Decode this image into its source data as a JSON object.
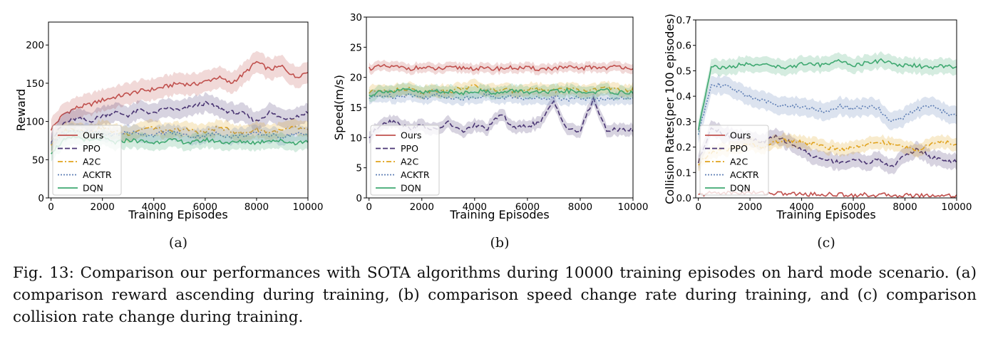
{
  "caption": "Fig. 13: Comparison our performances with SOTA algorithms during 10000 training episodes on hard mode scenario. (a) comparison reward ascending during training, (b) comparison speed change rate during training, and (c) comparison collision rate change during training.",
  "colors": {
    "Ours": "#c0504d",
    "PPO": "#4a3573",
    "A2C": "#e0a21c",
    "ACKTR": "#5f7fb5",
    "DQN": "#3ea870"
  },
  "chart_data": [
    {
      "type": "line",
      "panel_label": "(a)",
      "xlabel": "Training Episodes",
      "ylabel": "Reward",
      "xlim": [
        -100,
        10000
      ],
      "ylim": [
        0,
        230
      ],
      "xticks": [
        0,
        2000,
        4000,
        6000,
        8000,
        10000
      ],
      "xtick_labels": [
        "0",
        "2000",
        "4000",
        "6000",
        "8000",
        "10000"
      ],
      "yticks": [
        0,
        50,
        100,
        150,
        200
      ],
      "ytick_labels": [
        "0",
        "50",
        "100",
        "150",
        "200"
      ],
      "legend": "lower-left",
      "x": [
        0,
        500,
        1000,
        1500,
        2000,
        2500,
        3000,
        3500,
        4000,
        4500,
        5000,
        5500,
        6000,
        6500,
        7000,
        7500,
        8000,
        8500,
        9000,
        9500,
        10000
      ],
      "series": [
        {
          "name": "Ours",
          "dash": "solid",
          "band": 14,
          "values": [
            90,
            110,
            118,
            122,
            128,
            132,
            136,
            140,
            142,
            146,
            150,
            148,
            152,
            158,
            150,
            162,
            178,
            168,
            172,
            158,
            165
          ]
        },
        {
          "name": "PPO",
          "dash": "dashed",
          "band": 12,
          "values": [
            75,
            98,
            104,
            100,
            108,
            112,
            108,
            115,
            110,
            118,
            114,
            120,
            124,
            118,
            112,
            110,
            100,
            112,
            104,
            106,
            112
          ]
        },
        {
          "name": "A2C",
          "dash": "dashdot",
          "band": 10,
          "values": [
            70,
            88,
            90,
            86,
            92,
            86,
            84,
            90,
            92,
            86,
            90,
            88,
            86,
            92,
            88,
            84,
            90,
            86,
            88,
            92,
            88
          ]
        },
        {
          "name": "ACKTR",
          "dash": "dotted",
          "band": 10,
          "values": [
            72,
            85,
            88,
            86,
            84,
            82,
            86,
            84,
            82,
            86,
            84,
            80,
            82,
            84,
            80,
            82,
            84,
            82,
            80,
            84,
            82
          ]
        },
        {
          "name": "DQN",
          "dash": "solid",
          "band": 10,
          "values": [
            60,
            75,
            80,
            74,
            78,
            72,
            76,
            74,
            72,
            76,
            74,
            72,
            76,
            74,
            72,
            74,
            72,
            76,
            74,
            72,
            74
          ]
        }
      ]
    },
    {
      "type": "line",
      "panel_label": "(b)",
      "xlabel": "Training Episodes",
      "ylabel": "Speed(m/s)",
      "xlim": [
        -100,
        10000
      ],
      "ylim": [
        0,
        30
      ],
      "xticks": [
        0,
        2000,
        4000,
        6000,
        8000,
        10000
      ],
      "xtick_labels": [
        "0",
        "2000",
        "4000",
        "6000",
        "8000",
        "10000"
      ],
      "yticks": [
        0,
        5,
        10,
        15,
        20,
        25,
        30
      ],
      "ytick_labels": [
        "0",
        "5",
        "10",
        "15",
        "20",
        "25",
        "30"
      ],
      "legend": "lower-left",
      "x": [
        0,
        500,
        1000,
        1500,
        2000,
        2500,
        3000,
        3500,
        4000,
        4500,
        5000,
        5500,
        6000,
        6500,
        7000,
        7500,
        8000,
        8500,
        9000,
        9500,
        10000
      ],
      "series": [
        {
          "name": "Ours",
          "dash": "solid",
          "band": 0.8,
          "values": [
            21.5,
            21.8,
            21.7,
            21.5,
            21.6,
            21.4,
            21.5,
            21.6,
            21.5,
            21.4,
            21.5,
            21.6,
            21.5,
            21.4,
            21.5,
            21.6,
            21.5,
            21.7,
            21.6,
            21.8,
            21.6
          ]
        },
        {
          "name": "PPO",
          "dash": "dashed",
          "band": 1.0,
          "values": [
            10,
            12.5,
            12.8,
            11.5,
            12.0,
            11.2,
            12.5,
            11.0,
            12.0,
            11.5,
            14.0,
            11.5,
            12.0,
            12.5,
            16.0,
            11.5,
            11.0,
            16.5,
            11.0,
            11.5,
            11.2
          ]
        },
        {
          "name": "A2C",
          "dash": "dashdot",
          "band": 1.0,
          "values": [
            17.5,
            18.0,
            17.8,
            18.2,
            17.5,
            18.0,
            17.6,
            18.2,
            18.5,
            17.8,
            18.0,
            17.6,
            18.2,
            18.0,
            17.8,
            18.2,
            17.6,
            18.0,
            18.2,
            17.8,
            18.0
          ]
        },
        {
          "name": "ACKTR",
          "dash": "dotted",
          "band": 1.0,
          "values": [
            16.5,
            17.0,
            16.8,
            17.2,
            16.6,
            17.0,
            16.8,
            16.4,
            16.8,
            17.0,
            16.6,
            16.8,
            16.4,
            16.6,
            16.8,
            16.4,
            16.6,
            16.2,
            16.6,
            16.4,
            16.6
          ]
        },
        {
          "name": "DQN",
          "dash": "solid",
          "band": 1.0,
          "values": [
            17.0,
            17.8,
            17.6,
            18.0,
            17.4,
            17.8,
            17.6,
            17.4,
            17.8,
            17.6,
            17.4,
            17.8,
            17.6,
            17.4,
            17.6,
            17.8,
            17.4,
            17.6,
            17.8,
            17.4,
            17.6
          ]
        }
      ]
    },
    {
      "type": "line",
      "panel_label": "(c)",
      "xlabel": "Training Episodes",
      "ylabel": "Collision Rates(per 100 episodes)",
      "xlim": [
        -100,
        10000
      ],
      "ylim": [
        0,
        0.7
      ],
      "xticks": [
        0,
        2000,
        4000,
        6000,
        8000,
        10000
      ],
      "xtick_labels": [
        "0",
        "2000",
        "4000",
        "6000",
        "8000",
        "10000"
      ],
      "yticks": [
        0,
        0.1,
        0.2,
        0.3,
        0.4,
        0.5,
        0.6,
        0.7
      ],
      "ytick_labels": [
        "0.0",
        "0.1",
        "0.2",
        "0.3",
        "0.4",
        "0.5",
        "0.6",
        "0.7"
      ],
      "legend": "lower-left",
      "x": [
        0,
        500,
        1000,
        1500,
        2000,
        2500,
        3000,
        3500,
        4000,
        4500,
        5000,
        5500,
        6000,
        6500,
        7000,
        7500,
        8000,
        8500,
        9000,
        9500,
        10000
      ],
      "series": [
        {
          "name": "Ours",
          "dash": "solid",
          "band": 0.003,
          "values": [
            0.01,
            0.02,
            0.02,
            0.02,
            0.02,
            0.02,
            0.018,
            0.016,
            0.015,
            0.014,
            0.014,
            0.013,
            0.012,
            0.012,
            0.011,
            0.011,
            0.01,
            0.01,
            0.01,
            0.01,
            0.01
          ]
        },
        {
          "name": "PPO",
          "dash": "dashed",
          "band": 0.03,
          "values": [
            0.14,
            0.28,
            0.25,
            0.24,
            0.23,
            0.22,
            0.24,
            0.22,
            0.19,
            0.16,
            0.15,
            0.14,
            0.15,
            0.14,
            0.15,
            0.12,
            0.17,
            0.19,
            0.16,
            0.15,
            0.14
          ]
        },
        {
          "name": "A2C",
          "dash": "dashdot",
          "band": 0.025,
          "values": [
            0.13,
            0.18,
            0.19,
            0.2,
            0.21,
            0.2,
            0.22,
            0.23,
            0.22,
            0.21,
            0.2,
            0.19,
            0.2,
            0.21,
            0.22,
            0.21,
            0.2,
            0.19,
            0.21,
            0.22,
            0.21
          ]
        },
        {
          "name": "ACKTR",
          "dash": "dotted",
          "band": 0.035,
          "values": [
            0.25,
            0.45,
            0.44,
            0.42,
            0.4,
            0.38,
            0.37,
            0.36,
            0.36,
            0.35,
            0.34,
            0.36,
            0.35,
            0.36,
            0.35,
            0.3,
            0.32,
            0.35,
            0.36,
            0.34,
            0.32
          ]
        },
        {
          "name": "DQN",
          "dash": "solid",
          "band": 0.03,
          "values": [
            0.27,
            0.52,
            0.51,
            0.52,
            0.53,
            0.52,
            0.52,
            0.51,
            0.53,
            0.52,
            0.53,
            0.54,
            0.52,
            0.53,
            0.54,
            0.53,
            0.52,
            0.52,
            0.51,
            0.52,
            0.51
          ]
        }
      ]
    }
  ]
}
